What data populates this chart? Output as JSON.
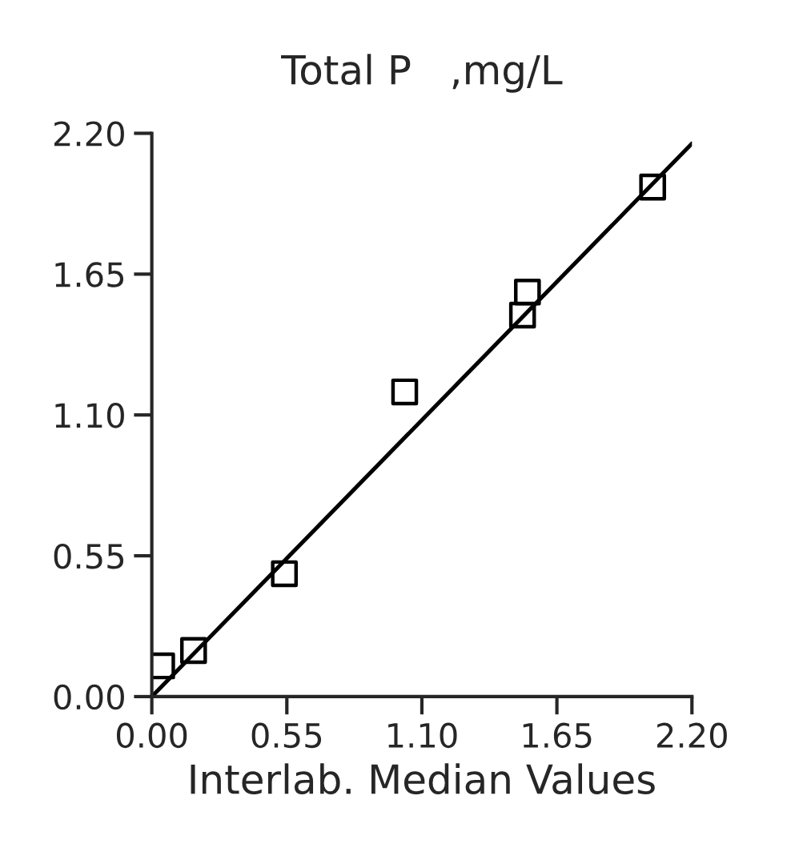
{
  "chart_data": {
    "type": "scatter",
    "title": "Total P   ,mg/L",
    "xlabel": "Interlab. Median Values",
    "xlim": [
      0,
      2.2
    ],
    "ylim": [
      0,
      2.2
    ],
    "xticks": [
      {
        "value": 0,
        "label": "0.00"
      },
      0.55,
      {
        "value": 1.1,
        "label": "1.10"
      },
      1.65,
      {
        "value": 2.2,
        "label": "2.20"
      }
    ],
    "yticks": [
      {
        "value": 0,
        "label": "0.00"
      },
      0.55,
      {
        "value": 1.1,
        "label": "1.10"
      },
      1.65,
      {
        "value": 2.2,
        "label": "2.20"
      }
    ],
    "grid": false,
    "legend": false,
    "series": [
      {
        "marker": "square",
        "color": "#000000",
        "x": [
          0.04,
          0.17,
          0.54,
          1.03,
          1.51,
          1.53,
          2.04
        ],
        "values": [
          0.12,
          0.18,
          0.48,
          1.19,
          1.49,
          1.58,
          1.99
        ]
      },
      {
        "type": "line",
        "color": "#000000",
        "x": [
          0,
          2.2
        ],
        "values": [
          0,
          2.16
        ]
      }
    ]
  }
}
